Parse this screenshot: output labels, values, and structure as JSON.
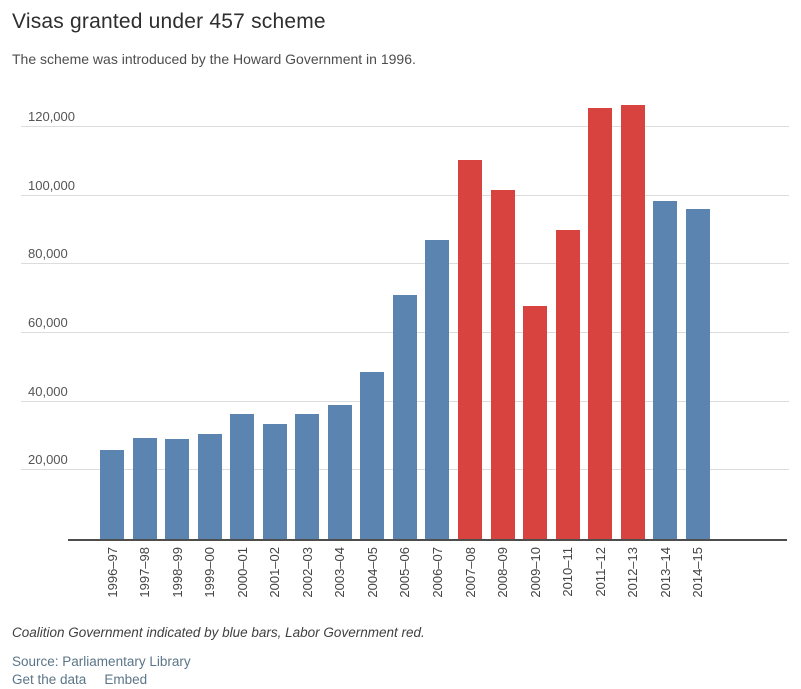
{
  "header": {
    "title": "Visas granted under 457 scheme",
    "subtitle": "The scheme was introduced by the Howard Government in 1996."
  },
  "footer": {
    "note": "Coalition Government indicated by blue bars, Labor Government red.",
    "source_prefix": "Source:",
    "source_name": "Parliamentary Library",
    "get_data_label": "Get the data",
    "embed_label": "Embed"
  },
  "chart_data": {
    "type": "bar",
    "title": "Visas granted under 457 scheme",
    "xlabel": "",
    "ylabel": "",
    "categories": [
      "1996–97",
      "1997–98",
      "1998–99",
      "1999–00",
      "2000–01",
      "2001–02",
      "2002–03",
      "2003–04",
      "2004–05",
      "2005–06",
      "2006–07",
      "2007–08",
      "2008–09",
      "2009–10",
      "2010–11",
      "2011–12",
      "2012–13",
      "2013–14",
      "2014–15"
    ],
    "values": [
      26000,
      29500,
      29000,
      30500,
      36500,
      33500,
      36500,
      39000,
      48500,
      71000,
      87000,
      110500,
      101500,
      68000,
      90000,
      125500,
      126500,
      98500,
      96000
    ],
    "parties": [
      "coalition",
      "coalition",
      "coalition",
      "coalition",
      "coalition",
      "coalition",
      "coalition",
      "coalition",
      "coalition",
      "coalition",
      "coalition",
      "labor",
      "labor",
      "labor",
      "labor",
      "labor",
      "labor",
      "coalition",
      "coalition"
    ],
    "colors": {
      "coalition": "#5b84b1",
      "labor": "#d8423f"
    },
    "yticks": [
      {
        "value": 20000,
        "label": "20,000"
      },
      {
        "value": 40000,
        "label": "40,000"
      },
      {
        "value": 60000,
        "label": "60,000"
      },
      {
        "value": 80000,
        "label": "80,000"
      },
      {
        "value": 100000,
        "label": "100,000"
      },
      {
        "value": 120000,
        "label": "120,000"
      }
    ],
    "ylim": [
      0,
      129000
    ],
    "grid": true,
    "legend": "none"
  }
}
